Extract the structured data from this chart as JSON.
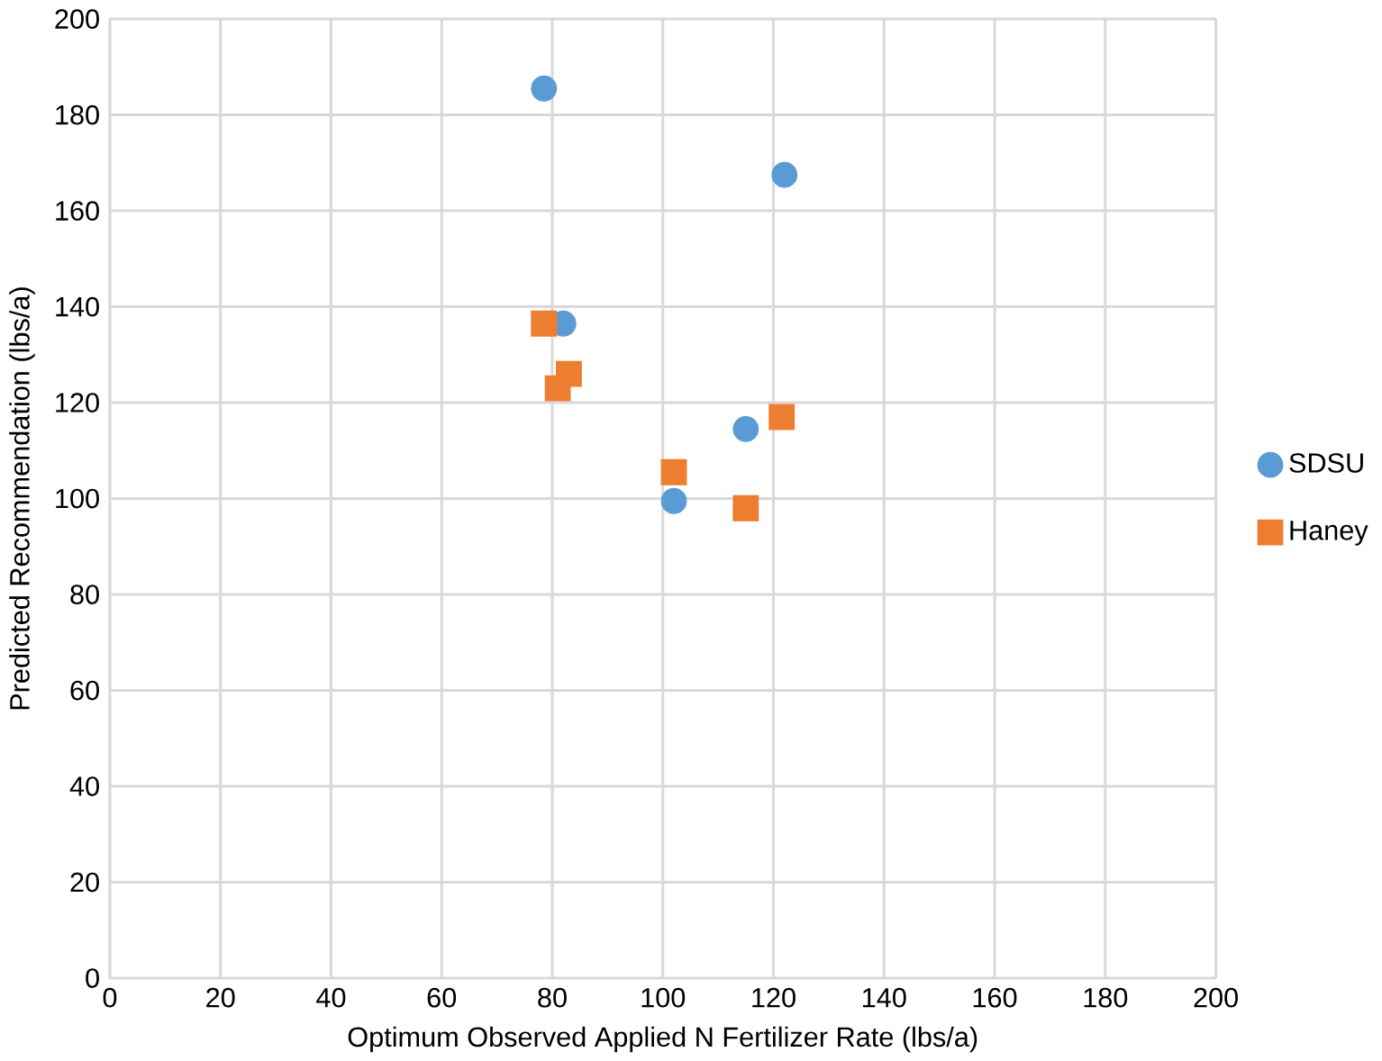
{
  "chart_data": {
    "type": "scatter",
    "xlabel": "Optimum Observed Applied N Fertilizer Rate (lbs/a)",
    "ylabel": "Predicted Recommendation (lbs/a)",
    "xlim": [
      0,
      200
    ],
    "ylim": [
      0,
      200
    ],
    "xticks": [
      0,
      20,
      40,
      60,
      80,
      100,
      120,
      140,
      160,
      180,
      200
    ],
    "yticks": [
      0,
      20,
      40,
      60,
      80,
      100,
      120,
      140,
      160,
      180,
      200
    ],
    "grid": true,
    "legend": "right",
    "series": [
      {
        "name": "SDSU",
        "color": "#5b9bd5",
        "marker": "circle",
        "x": [
          78.5,
          122,
          82,
          83,
          102,
          115
        ],
        "values": [
          185.5,
          167.5,
          136.5,
          null,
          99.5,
          114.5
        ]
      },
      {
        "name": "Haney",
        "color": "#ed7d31",
        "marker": "square",
        "x": [
          78.5,
          81,
          83,
          102,
          115,
          121.5
        ],
        "values": [
          136.5,
          123,
          126,
          105.5,
          98,
          117
        ]
      }
    ]
  }
}
